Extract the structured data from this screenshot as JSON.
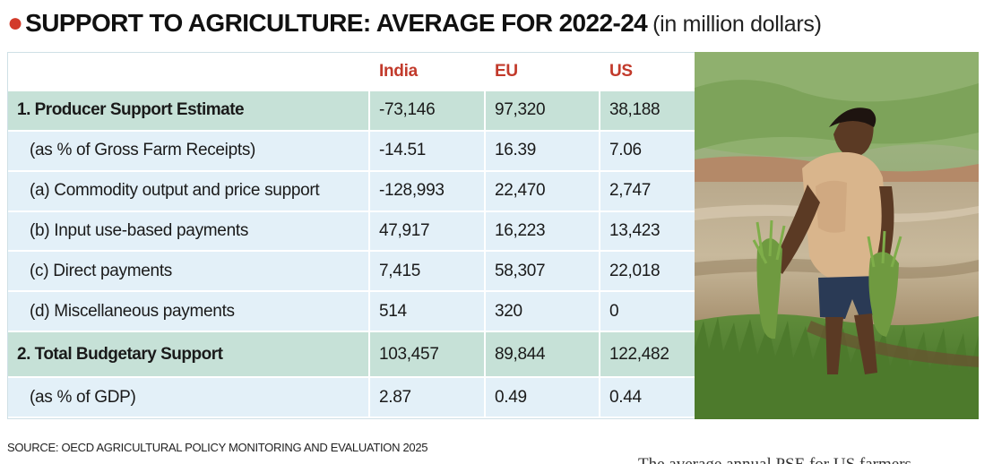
{
  "title": {
    "main": "SUPPORT TO AGRICULTURE: AVERAGE FOR 2022-24",
    "sub": "(in million dollars)"
  },
  "table": {
    "headers": [
      "",
      "India",
      "EU",
      "US"
    ],
    "rows": [
      {
        "label": "1. Producer Support Estimate",
        "india": "-73,146",
        "eu": "97,320",
        "us": "38,188"
      },
      {
        "label": "(as % of Gross Farm Receipts)",
        "india": "-14.51",
        "eu": "16.39",
        "us": "7.06"
      },
      {
        "label": "(a) Commodity output and price support",
        "india": "-128,993",
        "eu": "22,470",
        "us": "2,747"
      },
      {
        "label": "(b) Input use-based payments",
        "india": "47,917",
        "eu": "16,223",
        "us": "13,423"
      },
      {
        "label": "(c) Direct payments",
        "india": "7,415",
        "eu": "58,307",
        "us": "22,018"
      },
      {
        "label": "(d) Miscellaneous payments",
        "india": "514",
        "eu": "320",
        "us": "0"
      },
      {
        "label": "2. Total Budgetary Support",
        "india": "103,457",
        "eu": "89,844",
        "us": "122,482"
      },
      {
        "label": "(as % of GDP)",
        "india": "2.87",
        "eu": "0.49",
        "us": "0.44"
      }
    ]
  },
  "source": "SOURCE: OECD AGRICULTURAL POLICY MONITORING AND EVALUATION 2025",
  "cutoff_text": "The average annual PSE for US farmers",
  "colors": {
    "accent_red": "#c23a2b",
    "major_row": "#c6e1d7",
    "minor_row": "#e3f0f8"
  },
  "photo": {
    "subject": "farmer-carrying-rice-seedlings-in-paddy-field"
  }
}
